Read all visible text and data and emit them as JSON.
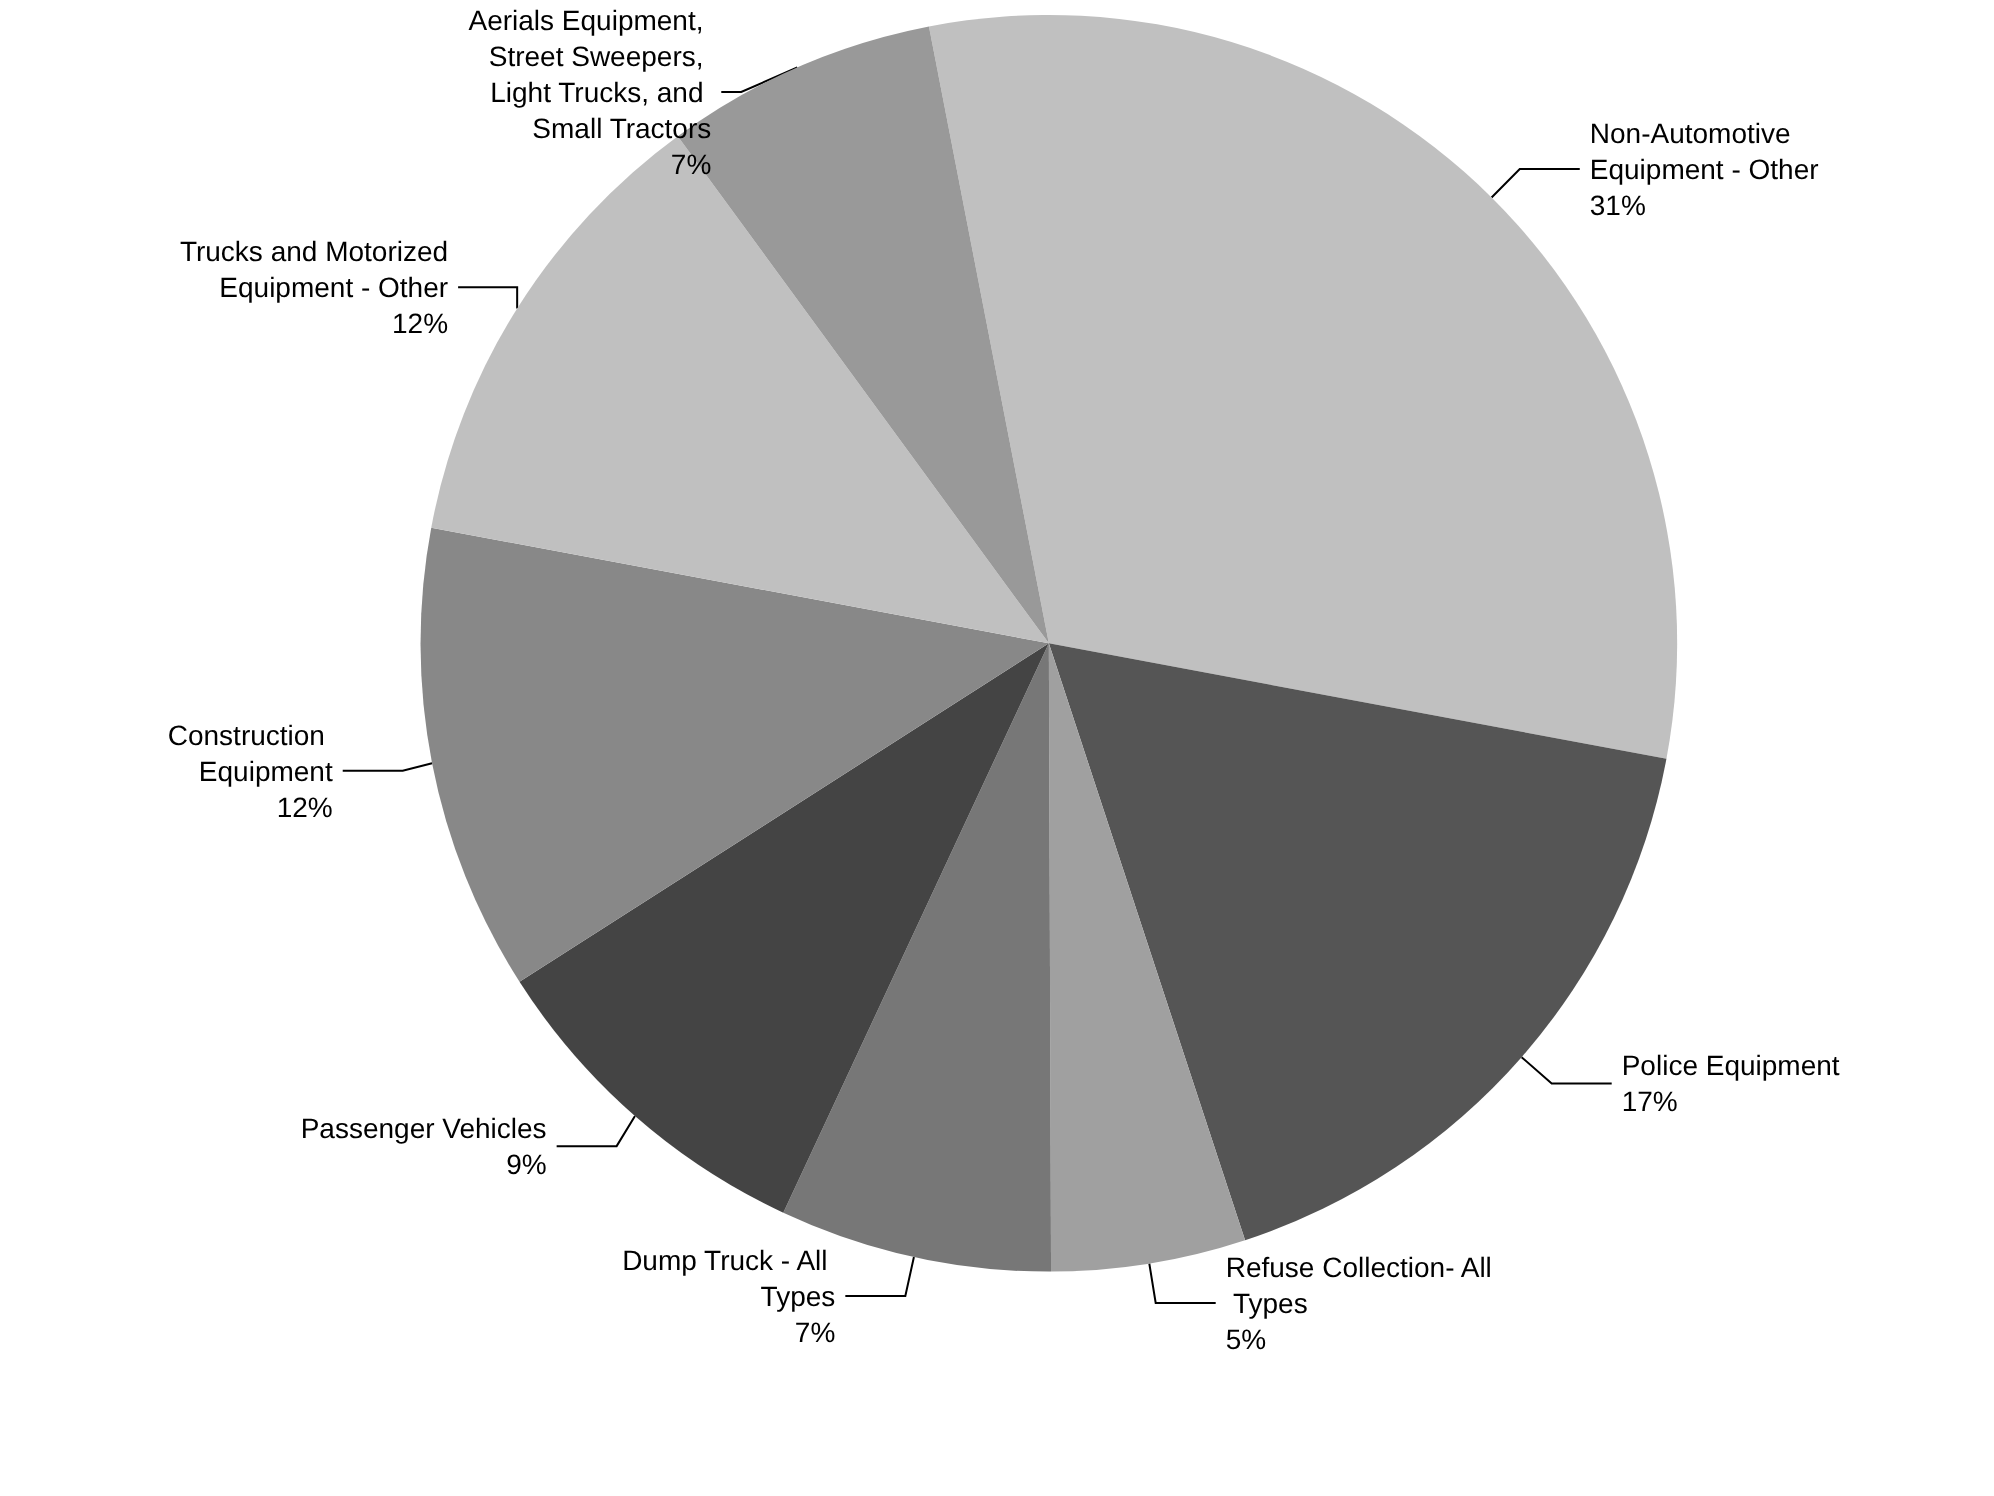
{
  "chart_data": {
    "type": "pie",
    "categories": [
      "Non-Automotive Equipment - Other",
      "Police Equipment",
      "Refuse Collection- All Types",
      "Dump Truck - All Types",
      "Passenger Vehicles",
      "Construction Equipment",
      "Trucks and Motorized Equipment - Other",
      "Aerials Equipment, Street Sweepers, Light Trucks, and Small Tractors"
    ],
    "values": [
      31,
      17,
      5,
      7,
      9,
      12,
      12,
      7
    ],
    "colors": [
      "#c0c0c0",
      "#555555",
      "#a0a0a0",
      "#777777",
      "#444444",
      "#888888",
      "#c0c0c0",
      "#999999"
    ],
    "value_labels": [
      "31%",
      "17%",
      "5%",
      "7%",
      "9%",
      "12%",
      "12%",
      "7%"
    ],
    "legend": false
  }
}
